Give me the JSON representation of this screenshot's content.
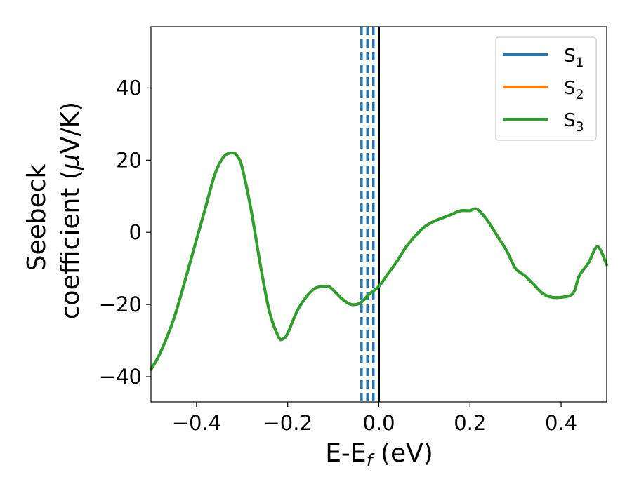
{
  "chart_data": {
    "type": "line",
    "xlabel": {
      "main": "E-E",
      "sub": "f",
      "suffix": " (eV)"
    },
    "ylabel": {
      "line1": "Seebeck",
      "line2_pre": "coefficient  (",
      "mu": "μ",
      "line2_post": "V/K)"
    },
    "xlim": [
      -0.5,
      0.5
    ],
    "ylim": [
      -47,
      57
    ],
    "x_ticks": [
      {
        "value": -0.4,
        "label": "−0.4"
      },
      {
        "value": -0.2,
        "label": "−0.2"
      },
      {
        "value": 0.0,
        "label": "0.0"
      },
      {
        "value": 0.2,
        "label": "0.2"
      },
      {
        "value": 0.4,
        "label": "0.4"
      }
    ],
    "y_ticks": [
      {
        "value": -40,
        "label": "−40"
      },
      {
        "value": -20,
        "label": "−20"
      },
      {
        "value": 0,
        "label": "0"
      },
      {
        "value": 20,
        "label": "20"
      },
      {
        "value": 40,
        "label": "40"
      }
    ],
    "grid": false,
    "legend_position": "top-right",
    "series": [
      {
        "name": "S",
        "sub": "1",
        "color": "#1f77b4",
        "x": [
          -0.5,
          -0.48,
          -0.45,
          -0.42,
          -0.4,
          -0.38,
          -0.36,
          -0.34,
          -0.32,
          -0.31,
          -0.3,
          -0.28,
          -0.26,
          -0.24,
          -0.22,
          -0.21,
          -0.2,
          -0.18,
          -0.16,
          -0.14,
          -0.12,
          -0.11,
          -0.1,
          -0.08,
          -0.06,
          -0.04,
          -0.02,
          0.0,
          0.02,
          0.04,
          0.06,
          0.08,
          0.1,
          0.12,
          0.14,
          0.16,
          0.18,
          0.2,
          0.21,
          0.22,
          0.24,
          0.26,
          0.28,
          0.3,
          0.32,
          0.34,
          0.36,
          0.38,
          0.4,
          0.42,
          0.43,
          0.44,
          0.46,
          0.48,
          0.5
        ],
        "y": [
          -38,
          -33.5,
          -24,
          -11,
          -2,
          7,
          16,
          21,
          22,
          21,
          18,
          6,
          -9,
          -22,
          -29,
          -29.5,
          -28,
          -22,
          -18,
          -15.5,
          -15,
          -15,
          -16,
          -18.5,
          -20,
          -19.5,
          -17,
          -15,
          -11.5,
          -8,
          -4,
          -1,
          1.5,
          3,
          4,
          5,
          6,
          6,
          6.5,
          6,
          3,
          -1,
          -5,
          -10,
          -12,
          -14.5,
          -17,
          -18,
          -18,
          -17.5,
          -16,
          -12,
          -8.5,
          -4,
          -9
        ]
      },
      {
        "name": "S",
        "sub": "2",
        "color": "#ff7f0e",
        "x": [
          -0.5,
          -0.48,
          -0.45,
          -0.42,
          -0.4,
          -0.38,
          -0.36,
          -0.34,
          -0.32,
          -0.31,
          -0.3,
          -0.28,
          -0.26,
          -0.24,
          -0.22,
          -0.21,
          -0.2,
          -0.18,
          -0.16,
          -0.14,
          -0.12,
          -0.11,
          -0.1,
          -0.08,
          -0.06,
          -0.04,
          -0.02,
          0.0,
          0.02,
          0.04,
          0.06,
          0.08,
          0.1,
          0.12,
          0.14,
          0.16,
          0.18,
          0.2,
          0.21,
          0.22,
          0.24,
          0.26,
          0.28,
          0.3,
          0.32,
          0.34,
          0.36,
          0.38,
          0.4,
          0.42,
          0.43,
          0.44,
          0.46,
          0.48,
          0.5
        ],
        "y": [
          -38,
          -33.5,
          -24,
          -11,
          -2,
          7,
          16,
          21,
          22,
          21,
          18,
          6,
          -9,
          -22,
          -29,
          -29.5,
          -28,
          -22,
          -18,
          -15.5,
          -15,
          -15,
          -16,
          -18.5,
          -20,
          -19.5,
          -17,
          -15,
          -11.5,
          -8,
          -4,
          -1,
          1.5,
          3,
          4,
          5,
          6,
          6,
          6.5,
          6,
          3,
          -1,
          -5,
          -10,
          -12,
          -14.5,
          -17,
          -18,
          -18,
          -17.5,
          -16,
          -12,
          -8.5,
          -4,
          -9
        ]
      },
      {
        "name": "S",
        "sub": "3",
        "color": "#2ca02c",
        "x": [
          -0.5,
          -0.48,
          -0.45,
          -0.42,
          -0.4,
          -0.38,
          -0.36,
          -0.34,
          -0.32,
          -0.31,
          -0.3,
          -0.28,
          -0.26,
          -0.24,
          -0.22,
          -0.21,
          -0.2,
          -0.18,
          -0.16,
          -0.14,
          -0.12,
          -0.11,
          -0.1,
          -0.08,
          -0.06,
          -0.04,
          -0.02,
          0.0,
          0.02,
          0.04,
          0.06,
          0.08,
          0.1,
          0.12,
          0.14,
          0.16,
          0.18,
          0.2,
          0.21,
          0.22,
          0.24,
          0.26,
          0.28,
          0.3,
          0.32,
          0.34,
          0.36,
          0.38,
          0.4,
          0.42,
          0.43,
          0.44,
          0.46,
          0.48,
          0.5
        ],
        "y": [
          -38,
          -33.5,
          -24,
          -11,
          -2,
          7,
          16,
          21,
          22,
          21,
          18,
          6,
          -9,
          -22,
          -29,
          -29.5,
          -28,
          -22,
          -18,
          -15.5,
          -15,
          -15,
          -16,
          -18.5,
          -20,
          -19.5,
          -17,
          -15,
          -11.5,
          -8,
          -4,
          -1,
          1.5,
          3,
          4,
          5,
          6,
          6,
          6.5,
          6,
          3,
          -1,
          -5,
          -10,
          -12,
          -14.5,
          -17,
          -18,
          -18,
          -17.5,
          -16,
          -12,
          -8.5,
          -4,
          -9
        ]
      }
    ],
    "reference_lines": [
      {
        "x": -0.038,
        "style": "dashed",
        "color": "#1f77b4"
      },
      {
        "x": -0.025,
        "style": "dashed",
        "color": "#1f77b4"
      },
      {
        "x": -0.012,
        "style": "dashed",
        "color": "#1f77b4"
      },
      {
        "x": 0.0,
        "style": "solid",
        "color": "#000000"
      }
    ]
  }
}
